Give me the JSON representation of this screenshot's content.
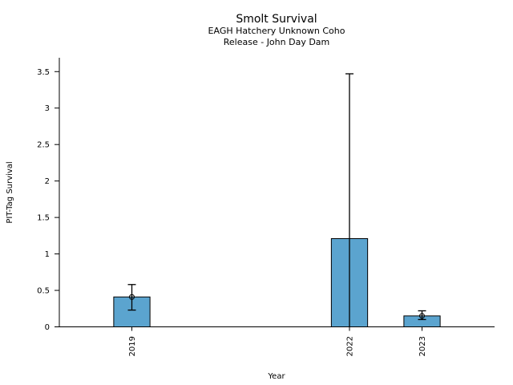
{
  "window": {
    "background": "#ffffff"
  },
  "chart_data": {
    "type": "bar",
    "title": "Smolt Survival",
    "subtitle_line1": "EAGH Hatchery Unknown Coho",
    "subtitle_line2": "Release - John Day Dam",
    "xlabel": "Year",
    "ylabel": "PIT-Tag Survival",
    "categories": [
      2019,
      2022,
      2023
    ],
    "values": [
      0.41,
      1.21,
      0.15
    ],
    "error_low": [
      0.23,
      0.0,
      0.1
    ],
    "error_high": [
      0.58,
      3.47,
      0.22
    ],
    "marker_visible": [
      true,
      false,
      true
    ],
    "bar_color": "#5BA4CF",
    "bar_edge_color": "#000000",
    "error_color": "#000000",
    "xlim": [
      2018,
      2024
    ],
    "ylim": [
      0,
      3.69
    ],
    "yticks": [
      0,
      0.5,
      1,
      1.5,
      2,
      2.5,
      3,
      3.5
    ],
    "ytick_labels": [
      "0",
      "0.5",
      "1",
      "1.5",
      "2",
      "2.5",
      "3",
      "3.5"
    ],
    "bar_width_years": 0.5,
    "grid": false,
    "legend": null
  }
}
